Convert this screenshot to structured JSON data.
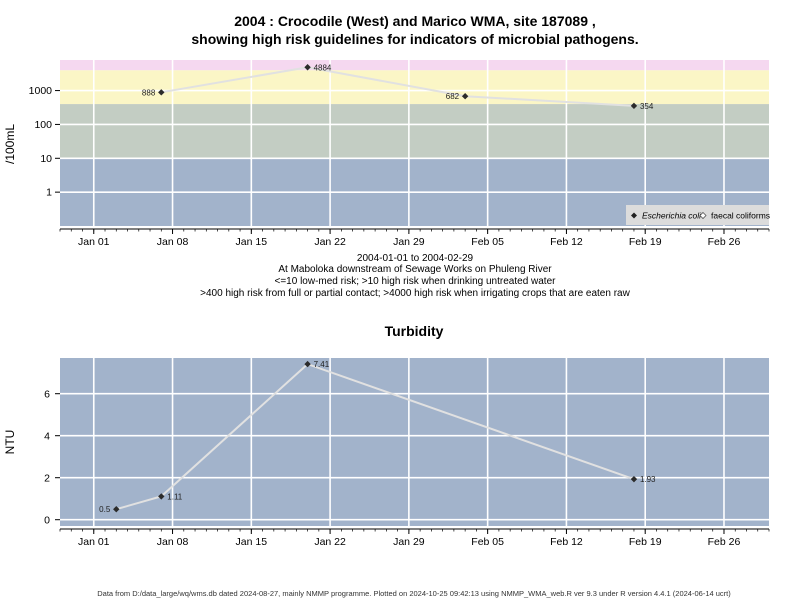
{
  "chart_data": [
    {
      "type": "line",
      "title_line1": "2004 : Crocodile (West) and Marico WMA, site 187089 ,",
      "title_line2": "showing high risk guidelines for indicators of microbial pathogens.",
      "ylabel": "/100mL",
      "yscale": "log",
      "ylim": [
        0.1,
        8000
      ],
      "yticks": [
        1,
        10,
        100,
        1000
      ],
      "ytick_labels": [
        "1",
        "10",
        "100",
        "1000"
      ],
      "xlim": [
        "2003-12-29",
        "2004-03-01"
      ],
      "x_ticks": [
        "2004-01-01",
        "2004-01-08",
        "2004-01-15",
        "2004-01-22",
        "2004-01-29",
        "2004-02-05",
        "2004-02-12",
        "2004-02-19",
        "2004-02-26"
      ],
      "x_tick_labels": [
        "Jan 01",
        "Jan 08",
        "Jan 15",
        "Jan 22",
        "Jan 29",
        "Feb 05",
        "Feb 12",
        "Feb 19",
        "Feb 26"
      ],
      "grid": true,
      "bands": [
        {
          "from": 0.1,
          "to": 10,
          "color": "#a2b3cb"
        },
        {
          "from": 10,
          "to": 400,
          "color": "#c3cdc3"
        },
        {
          "from": 400,
          "to": 4000,
          "color": "#fbf6c6"
        },
        {
          "from": 4000,
          "to": 8000,
          "color": "#f5d8f0"
        }
      ],
      "series": [
        {
          "name": "Escherichia coli",
          "marker": "filled-diamond",
          "x": [
            "2004-01-07",
            "2004-01-20",
            "2004-02-03",
            "2004-02-18"
          ],
          "y": [
            888,
            4884,
            682,
            354
          ],
          "labels": [
            "888",
            "4884",
            "682",
            "354"
          ]
        }
      ],
      "legend": {
        "placement": "bottom-right",
        "entries": [
          "Escherichia coli",
          "faecal coliforms"
        ]
      },
      "notes": [
        "2004-01-01 to 2004-02-29",
        "At Maboloka downstream of Sewage Works on Phuleng River",
        "<=10 low-med risk; >10 high risk when drinking untreated water",
        ">400 high risk from full or partial contact; >4000 high risk when irrigating crops that are eaten raw"
      ]
    },
    {
      "type": "line",
      "title": "Turbidity",
      "ylabel": "NTU",
      "ylim": [
        -0.3,
        7.7
      ],
      "yticks": [
        0,
        2,
        4,
        6
      ],
      "ytick_labels": [
        "0",
        "2",
        "4",
        "6"
      ],
      "xlim": [
        "2003-12-29",
        "2004-03-01"
      ],
      "x_ticks": [
        "2004-01-01",
        "2004-01-08",
        "2004-01-15",
        "2004-01-22",
        "2004-01-29",
        "2004-02-05",
        "2004-02-12",
        "2004-02-19",
        "2004-02-26"
      ],
      "x_tick_labels": [
        "Jan 01",
        "Jan 08",
        "Jan 15",
        "Jan 22",
        "Jan 29",
        "Feb 05",
        "Feb 12",
        "Feb 19",
        "Feb 26"
      ],
      "grid": true,
      "background": "#a2b3cb",
      "series": [
        {
          "marker": "filled-diamond",
          "x": [
            "2004-01-03",
            "2004-01-07",
            "2004-01-20",
            "2004-02-18"
          ],
          "y": [
            0.5,
            1.11,
            7.41,
            1.93
          ],
          "labels": [
            "0.5",
            "1.11",
            "7.41",
            "1.93"
          ]
        }
      ]
    }
  ],
  "footer": "Data from D:/data_large/wq/wms.db dated 2024-08-27, mainly NMMP programme. Plotted on 2024-10-25 09:42:13 using NMMP_WMA_web.R ver 9.3 under R version 4.4.1 (2024-06-14 ucrt)"
}
